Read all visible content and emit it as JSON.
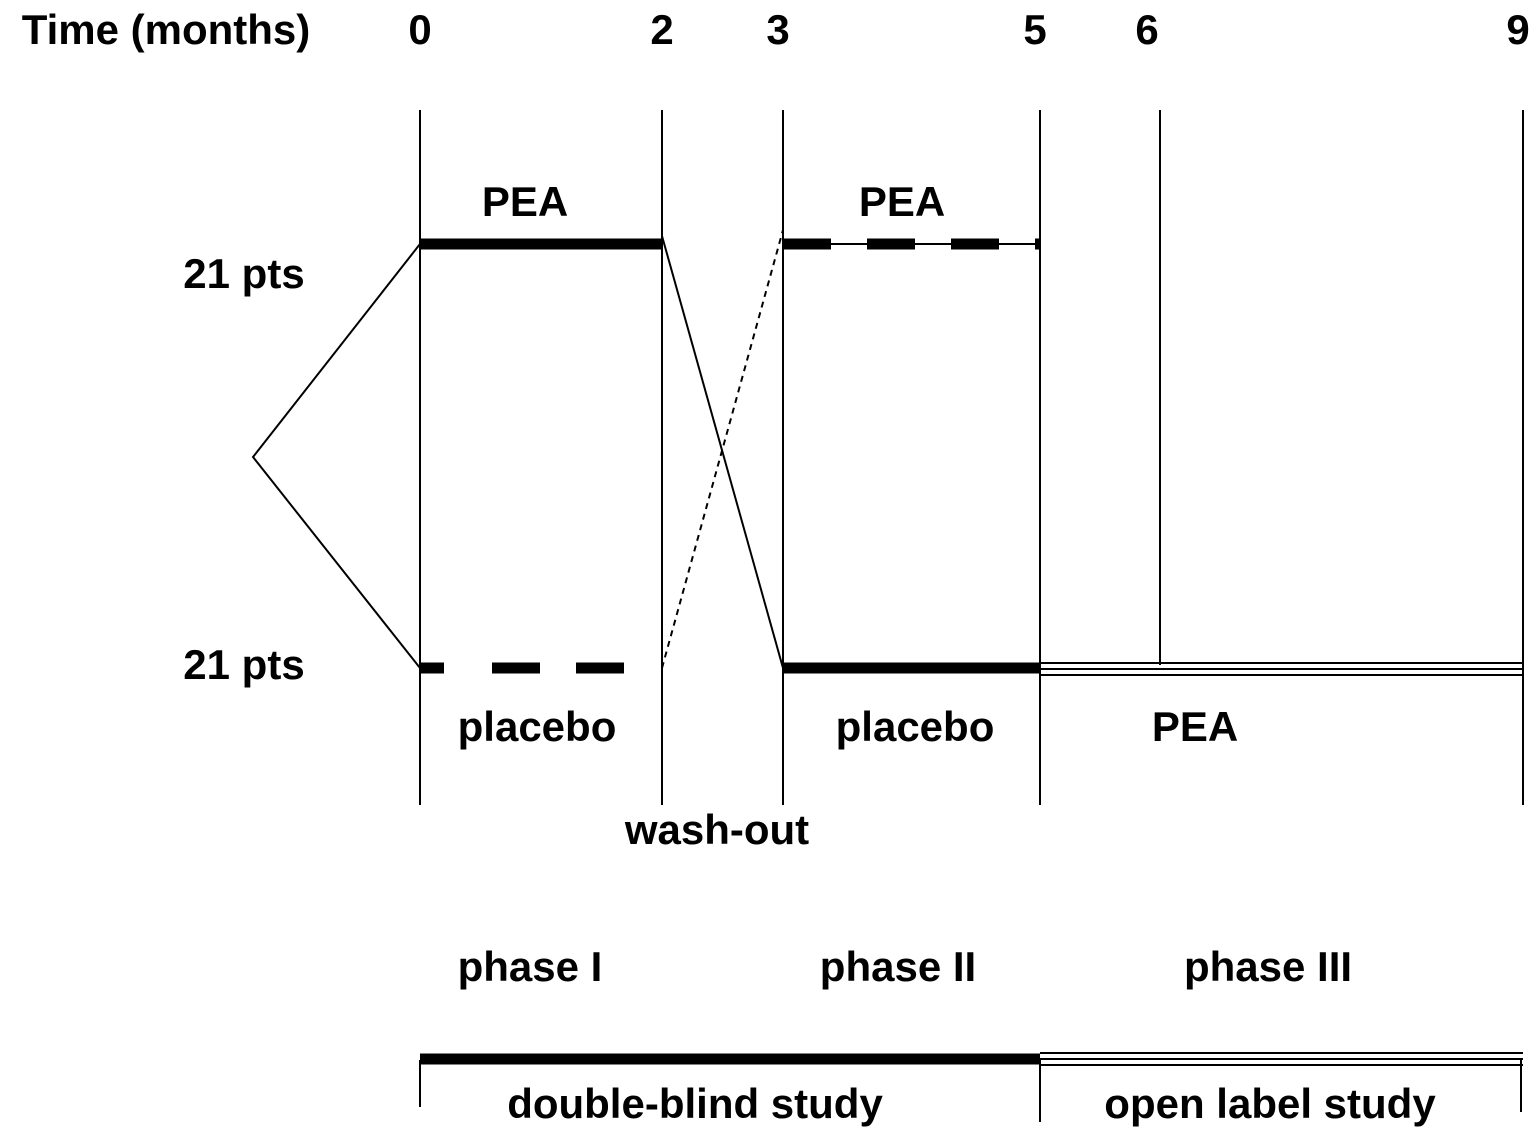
{
  "time_axis": {
    "label": "Time (months)",
    "ticks": [
      "0",
      "2",
      "3",
      "5",
      "6",
      "9"
    ]
  },
  "groups": [
    "21 pts",
    "21 pts"
  ],
  "treatments": {
    "phase1_top": "PEA",
    "phase2_top": "PEA",
    "phase1_bottom": "placebo",
    "phase2_bottom": "placebo",
    "phase3_bottom": "PEA"
  },
  "washout": "wash-out",
  "phases": [
    "phase I",
    "phase II",
    "phase III"
  ],
  "studies": [
    "double-blind study",
    "open label study"
  ]
}
